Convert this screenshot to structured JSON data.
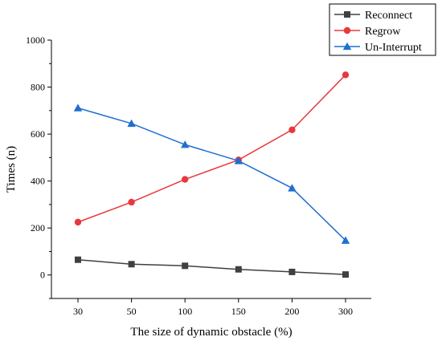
{
  "chart_data": {
    "type": "line",
    "categories": [
      "30",
      "50",
      "100",
      "150",
      "200",
      "300"
    ],
    "xlabel": "The size of dynamic obstacle (%)",
    "ylabel": "Times (n)",
    "ylim": [
      -100,
      1000
    ],
    "yticks": [
      0,
      200,
      400,
      600,
      800,
      1000
    ],
    "grid": false,
    "legend_position": "top-right",
    "series": [
      {
        "name": "Reconnect",
        "color": "#404040",
        "marker": "square",
        "values": [
          65,
          46,
          39,
          24,
          13,
          2
        ]
      },
      {
        "name": "Regrow",
        "color": "#e8383b",
        "marker": "circle",
        "values": [
          225,
          310,
          407,
          490,
          618,
          852
        ]
      },
      {
        "name": "Un-Interrupt",
        "color": "#1f6fd1",
        "marker": "triangle",
        "values": [
          711,
          645,
          555,
          486,
          370,
          147
        ]
      }
    ]
  }
}
